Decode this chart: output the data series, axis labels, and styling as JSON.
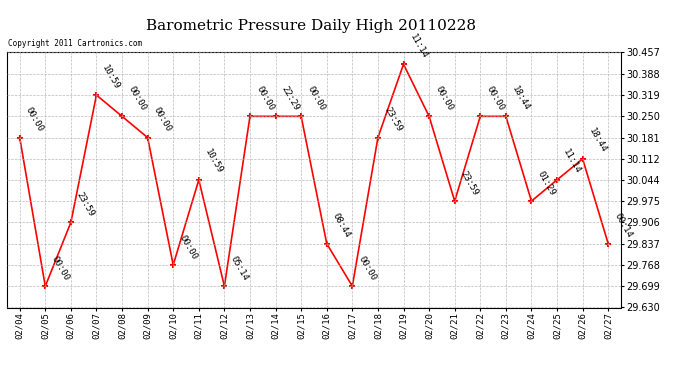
{
  "title": "Barometric Pressure Daily High 20110228",
  "copyright": "Copyright 2011 Cartronics.com",
  "x_labels": [
    "02/04",
    "02/05",
    "02/06",
    "02/07",
    "02/08",
    "02/09",
    "02/10",
    "02/11",
    "02/12",
    "02/13",
    "02/14",
    "02/15",
    "02/16",
    "02/17",
    "02/18",
    "02/19",
    "02/20",
    "02/21",
    "02/22",
    "02/23",
    "02/24",
    "02/25",
    "02/26",
    "02/27"
  ],
  "y_values": [
    30.181,
    29.699,
    29.906,
    30.319,
    30.25,
    30.181,
    29.768,
    30.044,
    29.699,
    30.25,
    30.25,
    30.25,
    29.837,
    29.699,
    30.181,
    30.419,
    30.25,
    29.975,
    30.25,
    30.25,
    29.975,
    30.044,
    30.112,
    29.837
  ],
  "annotations": [
    "00:00",
    "00:00",
    "23:59",
    "10:59",
    "00:00",
    "00:00",
    "00:00",
    "10:59",
    "05:14",
    "00:00",
    "22:29",
    "00:00",
    "08:44",
    "00:00",
    "23:59",
    "11:14",
    "00:00",
    "23:59",
    "00:00",
    "18:44",
    "01:29",
    "11:14",
    "18:44",
    "00:14"
  ],
  "ylim_min": 29.63,
  "ylim_max": 30.457,
  "yticks": [
    29.63,
    29.699,
    29.768,
    29.837,
    29.906,
    29.975,
    30.044,
    30.112,
    30.181,
    30.25,
    30.319,
    30.388,
    30.457
  ],
  "line_color": "#ff0000",
  "marker_color": "#ff0000",
  "bg_color": "#ffffff",
  "grid_color": "#aaaaaa",
  "title_fontsize": 11,
  "annot_fontsize": 6.5,
  "annot_rotation": -60
}
